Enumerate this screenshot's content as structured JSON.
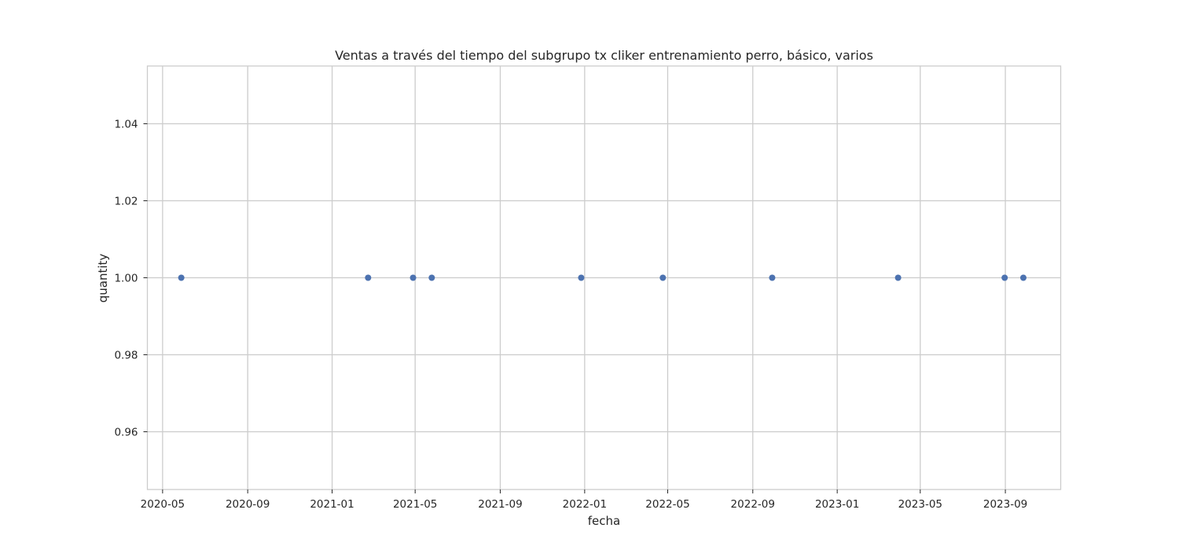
{
  "chart_data": {
    "type": "scatter",
    "title": "Ventas a través del tiempo del subgrupo tx cliker entrenamiento perro, básico, varios",
    "xlabel": "fecha",
    "ylabel": "quantity",
    "x_tick_labels": [
      "2020-05",
      "2020-09",
      "2021-01",
      "2021-05",
      "2021-09",
      "2022-01",
      "2022-05",
      "2022-09",
      "2023-01",
      "2023-05",
      "2023-09"
    ],
    "y_ticks": [
      0.96,
      0.98,
      1.0,
      1.02,
      1.04
    ],
    "y_tick_labels": [
      "0.96",
      "0.98",
      "1.00",
      "1.02",
      "1.04"
    ],
    "xlim": [
      "2020-04-09",
      "2023-11-20"
    ],
    "ylim": [
      0.945,
      1.055
    ],
    "grid": true,
    "marker_color": "#4c72b0",
    "series": [
      {
        "x": [
          "2020-05-28",
          "2021-02-22",
          "2021-04-28",
          "2021-05-25",
          "2021-12-27",
          "2022-04-24",
          "2022-09-29",
          "2023-03-30",
          "2023-08-31",
          "2023-09-27"
        ],
        "y": [
          1,
          1,
          1,
          1,
          1,
          1,
          1,
          1,
          1,
          1
        ]
      }
    ]
  }
}
